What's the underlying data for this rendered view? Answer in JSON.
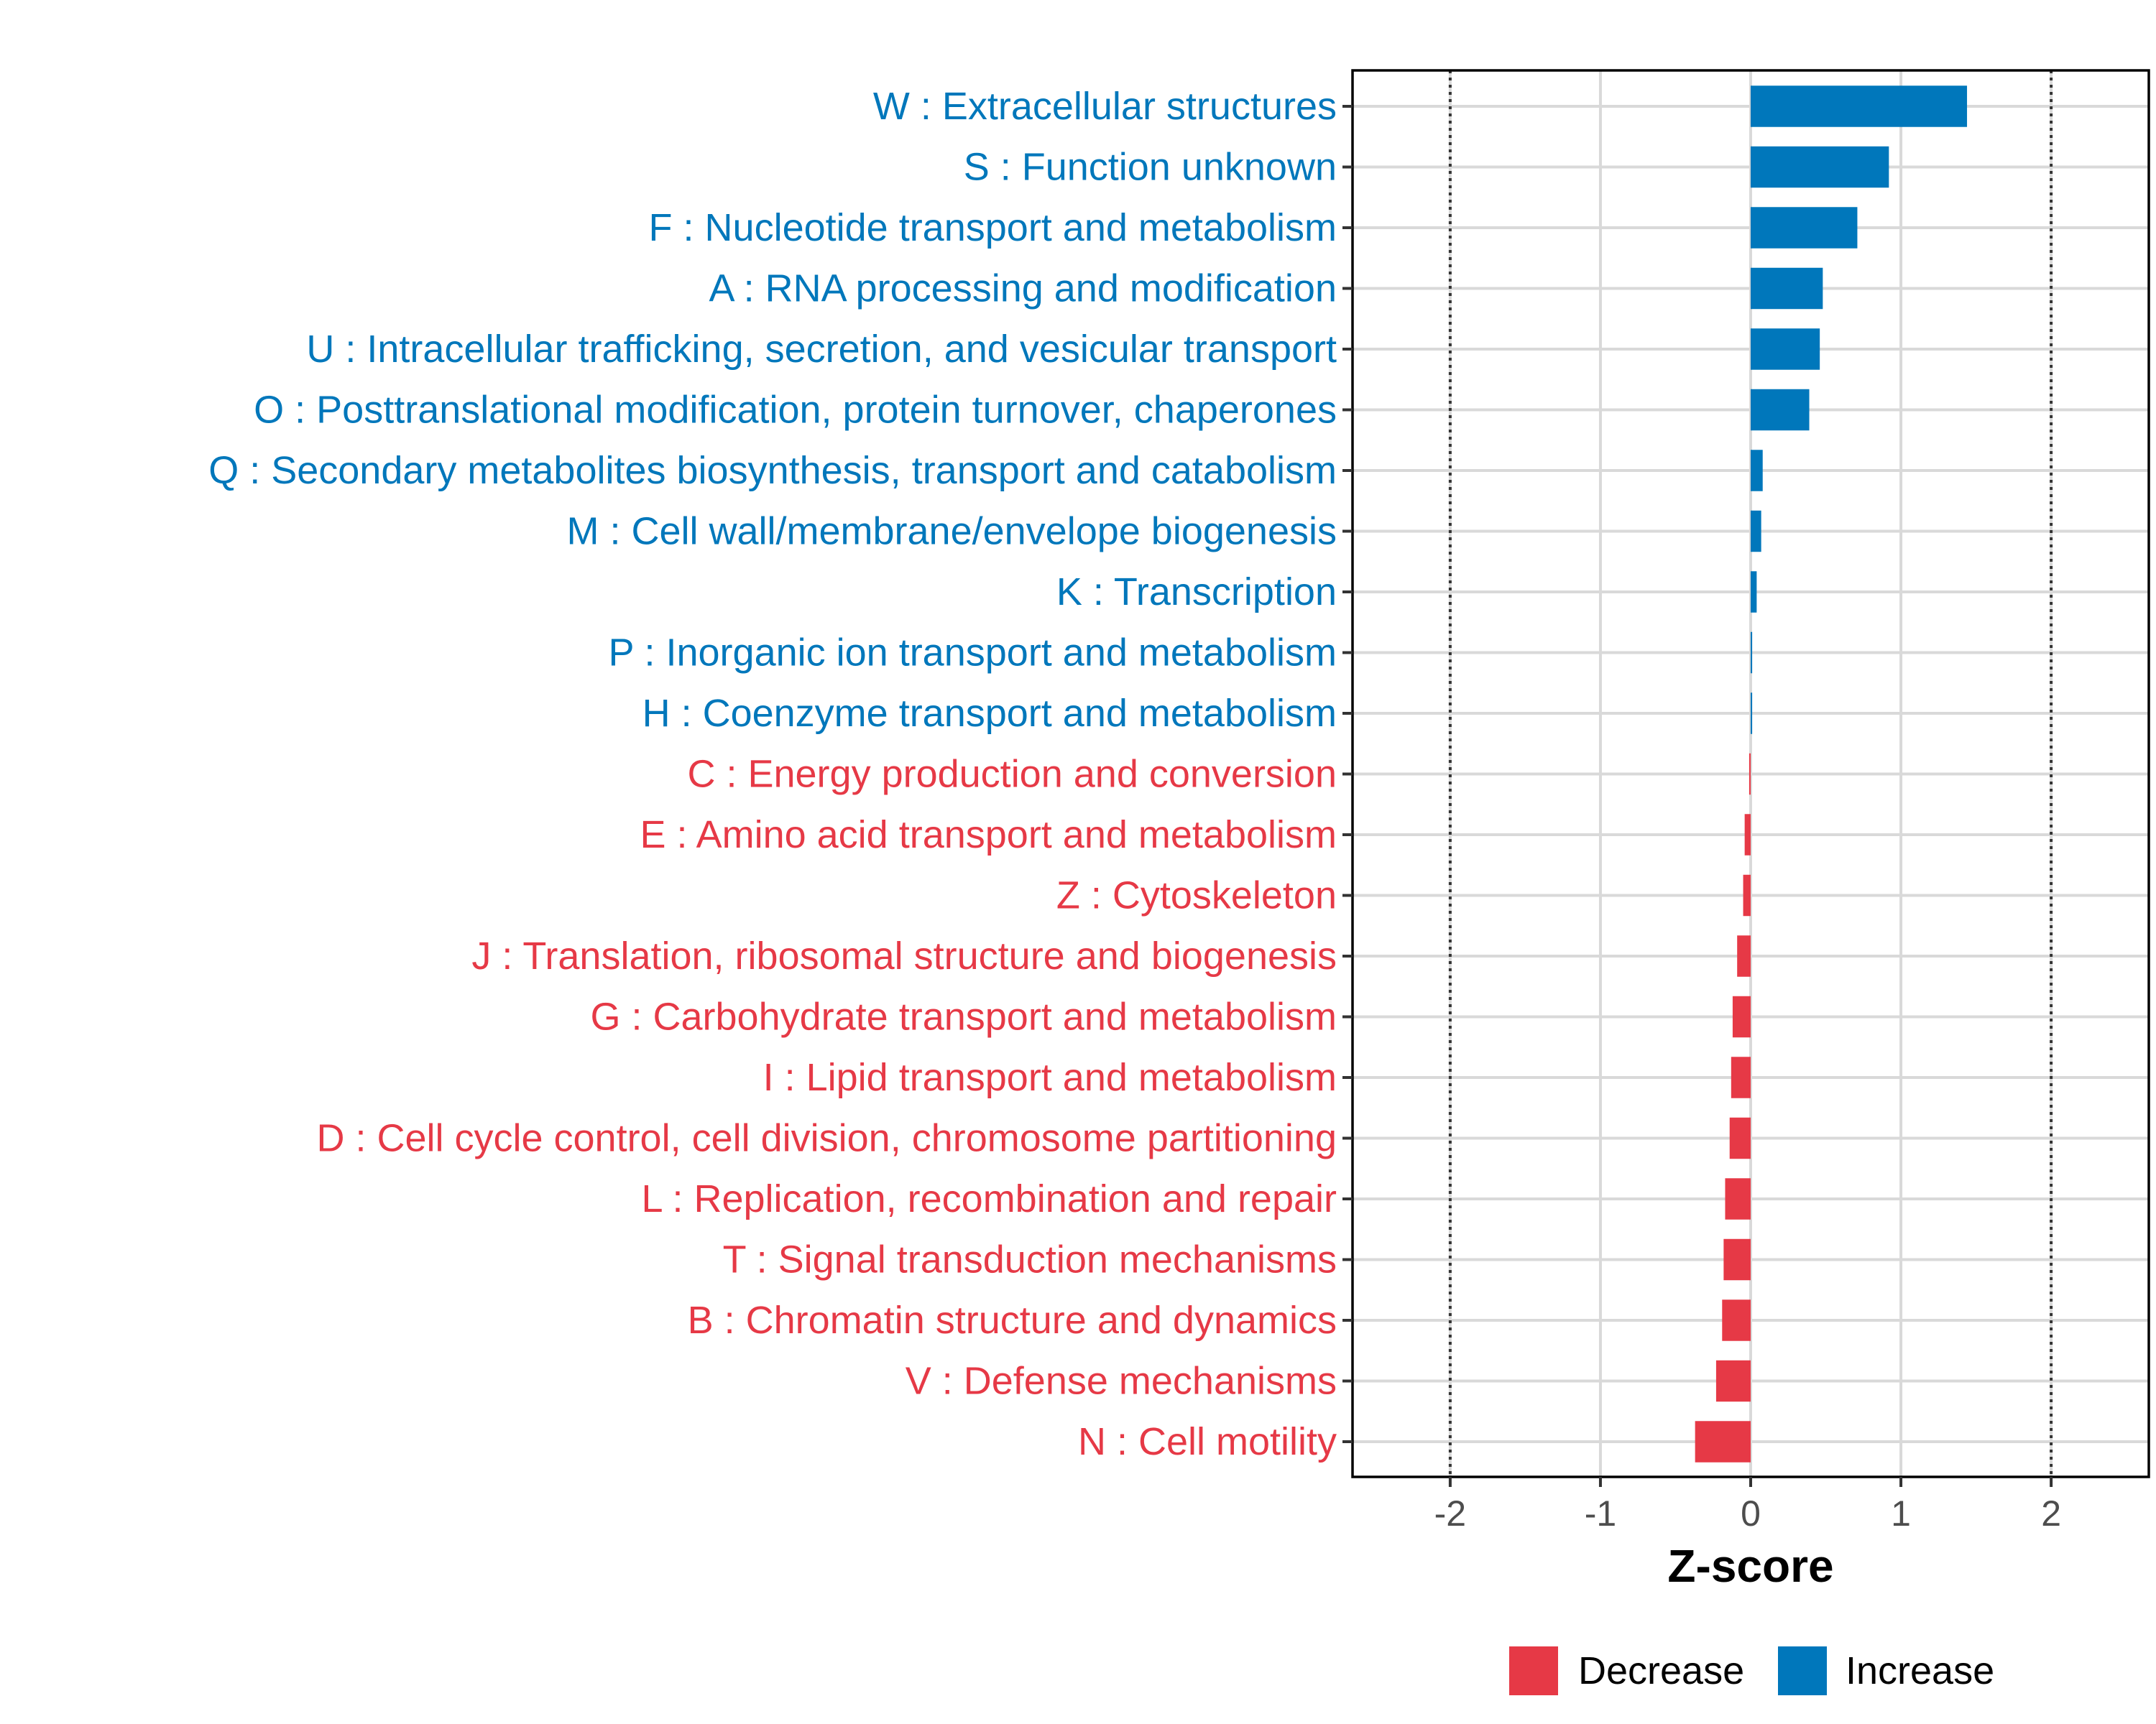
{
  "chart_data": {
    "type": "bar",
    "orientation": "horizontal",
    "xlabel": "Z-score",
    "xlim": [
      -2.65,
      2.65
    ],
    "xticks": [
      -2,
      -1,
      0,
      1,
      2
    ],
    "xtick_labels": [
      "-2",
      "-1",
      "0",
      "1",
      "2"
    ],
    "reference_lines": [
      -2,
      2
    ],
    "colors": {
      "Increase": "#0077bb",
      "Decrease": "#e63946"
    },
    "legend": [
      {
        "label": "Decrease",
        "color": "#e63946"
      },
      {
        "label": "Increase",
        "color": "#0077bb"
      }
    ],
    "legend_position": "bottom",
    "categories": [
      {
        "label": "W : Extracellular structures",
        "value": 1.44,
        "direction": "Increase"
      },
      {
        "label": "S : Function unknown",
        "value": 0.92,
        "direction": "Increase"
      },
      {
        "label": "F : Nucleotide transport and metabolism",
        "value": 0.71,
        "direction": "Increase"
      },
      {
        "label": "A : RNA processing and modification",
        "value": 0.48,
        "direction": "Increase"
      },
      {
        "label": "U : Intracellular trafficking, secretion, and vesicular transport",
        "value": 0.46,
        "direction": "Increase"
      },
      {
        "label": "O : Posttranslational modification, protein turnover, chaperones",
        "value": 0.39,
        "direction": "Increase"
      },
      {
        "label": "Q : Secondary metabolites biosynthesis, transport and catabolism",
        "value": 0.08,
        "direction": "Increase"
      },
      {
        "label": "M : Cell wall/membrane/envelope biogenesis",
        "value": 0.07,
        "direction": "Increase"
      },
      {
        "label": "K : Transcription",
        "value": 0.04,
        "direction": "Increase"
      },
      {
        "label": "P : Inorganic ion transport and metabolism",
        "value": 0.01,
        "direction": "Increase"
      },
      {
        "label": "H : Coenzyme transport and metabolism",
        "value": 0.01,
        "direction": "Increase"
      },
      {
        "label": "C : Energy production and conversion",
        "value": -0.01,
        "direction": "Decrease"
      },
      {
        "label": "E : Amino acid transport and metabolism",
        "value": -0.04,
        "direction": "Decrease"
      },
      {
        "label": "Z : Cytoskeleton",
        "value": -0.05,
        "direction": "Decrease"
      },
      {
        "label": "J : Translation, ribosomal structure and biogenesis",
        "value": -0.09,
        "direction": "Decrease"
      },
      {
        "label": "G : Carbohydrate transport and metabolism",
        "value": -0.12,
        "direction": "Decrease"
      },
      {
        "label": "I : Lipid transport and metabolism",
        "value": -0.13,
        "direction": "Decrease"
      },
      {
        "label": "D : Cell cycle control, cell division, chromosome partitioning",
        "value": -0.14,
        "direction": "Decrease"
      },
      {
        "label": "L : Replication, recombination and repair",
        "value": -0.17,
        "direction": "Decrease"
      },
      {
        "label": "T : Signal transduction mechanisms",
        "value": -0.18,
        "direction": "Decrease"
      },
      {
        "label": "B : Chromatin structure and dynamics",
        "value": -0.19,
        "direction": "Decrease"
      },
      {
        "label": "V : Defense mechanisms",
        "value": -0.23,
        "direction": "Decrease"
      },
      {
        "label": "N : Cell motility",
        "value": -0.37,
        "direction": "Decrease"
      }
    ]
  }
}
